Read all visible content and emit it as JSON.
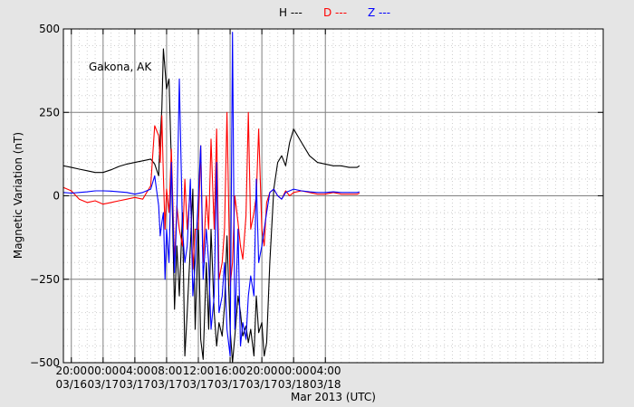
{
  "chart_data": {
    "type": "line",
    "title": "",
    "annotation": "Gakona, AK",
    "xlabel": "Mar 2013 (UTC)",
    "ylabel": "Magnetic Variation (nT)",
    "xlim": [
      -5,
      63
    ],
    "ylim": [
      -500,
      500
    ],
    "x_unit": "hours since 03/17 00:00 UTC",
    "grid": true,
    "legend_position": "top-center",
    "yticks": [
      {
        "value": 500,
        "label": "500"
      },
      {
        "value": 250,
        "label": "250"
      },
      {
        "value": 0,
        "label": "0"
      },
      {
        "value": -250,
        "label": "−250"
      },
      {
        "value": -500,
        "label": "−500"
      }
    ],
    "xticks": [
      {
        "value": -4,
        "time": "20:00",
        "date": "03/16"
      },
      {
        "value": 0,
        "time": "00:00",
        "date": "03/17"
      },
      {
        "value": 4,
        "time": "04:00",
        "date": "03/17"
      },
      {
        "value": 8,
        "time": "08:00",
        "date": "03/17"
      },
      {
        "value": 12,
        "time": "12:00",
        "date": "03/17"
      },
      {
        "value": 16,
        "time": "16:00",
        "date": "03/17"
      },
      {
        "value": 20,
        "time": "20:00",
        "date": "03/17"
      },
      {
        "value": 24,
        "time": "00:00",
        "date": "03/18"
      },
      {
        "value": 28,
        "time": "04:00",
        "date": "03/18"
      }
    ],
    "series": [
      {
        "name": "H ---",
        "color": "#000000",
        "x": [
          -6,
          -5,
          -4,
          -3,
          -2,
          -1,
          0,
          1,
          2,
          3,
          4,
          5,
          6,
          6.5,
          7,
          7.2,
          7.4,
          7.6,
          7.8,
          8,
          8.3,
          8.6,
          9,
          9.3,
          9.6,
          10,
          10.3,
          10.6,
          11,
          11.3,
          11.6,
          12,
          12.3,
          12.6,
          13,
          13.3,
          13.6,
          14,
          14.3,
          14.6,
          15,
          15.3,
          15.6,
          16,
          16.3,
          16.6,
          17,
          17.3,
          17.6,
          18,
          18.3,
          18.6,
          19,
          19.3,
          19.6,
          20,
          20.3,
          20.6,
          21,
          21.5,
          22,
          22.5,
          23,
          23.5,
          24,
          25,
          26,
          27,
          28,
          29,
          30,
          31,
          32,
          32.3
        ],
        "values": [
          95,
          90,
          85,
          80,
          75,
          70,
          70,
          78,
          88,
          95,
          100,
          105,
          110,
          95,
          60,
          180,
          260,
          440,
          380,
          320,
          350,
          100,
          -340,
          -150,
          -300,
          -50,
          -480,
          -350,
          -150,
          20,
          -400,
          -80,
          -430,
          -490,
          -200,
          -400,
          -100,
          -350,
          -450,
          -380,
          -420,
          -330,
          -120,
          -400,
          -500,
          -420,
          -300,
          -350,
          -420,
          -390,
          -440,
          -400,
          -480,
          -300,
          -410,
          -380,
          -480,
          -440,
          -200,
          20,
          100,
          120,
          90,
          160,
          200,
          160,
          120,
          100,
          95,
          90,
          90,
          85,
          85,
          90
        ]
      },
      {
        "name": "D ---",
        "color": "#ff0000",
        "x": [
          -6,
          -5,
          -4,
          -3,
          -2,
          -1,
          0,
          1,
          2,
          3,
          4,
          5,
          6,
          6.5,
          7,
          7.2,
          7.4,
          7.6,
          7.8,
          8,
          8.3,
          8.6,
          9,
          9.3,
          9.6,
          10,
          10.3,
          10.6,
          11,
          11.3,
          11.6,
          12,
          12.3,
          12.6,
          13,
          13.3,
          13.6,
          14,
          14.3,
          14.6,
          15,
          15.3,
          15.6,
          16,
          16.3,
          16.6,
          17,
          17.3,
          17.6,
          18,
          18.3,
          18.6,
          19,
          19.3,
          19.6,
          20,
          20.3,
          20.6,
          21,
          21.5,
          22,
          22.5,
          23,
          23.5,
          24,
          25,
          26,
          27,
          28,
          29,
          30,
          31,
          32,
          32.3
        ],
        "values": [
          20,
          25,
          15,
          -10,
          -20,
          -15,
          -25,
          -20,
          -15,
          -10,
          -5,
          -10,
          30,
          210,
          180,
          100,
          240,
          60,
          -100,
          20,
          -50,
          140,
          -200,
          -30,
          -100,
          -150,
          50,
          -100,
          20,
          -220,
          -100,
          -100,
          150,
          -200,
          0,
          -100,
          170,
          -100,
          200,
          -250,
          -200,
          -100,
          250,
          -270,
          -200,
          0,
          -80,
          -150,
          -190,
          -60,
          250,
          -100,
          -50,
          0,
          200,
          -100,
          -150,
          -20,
          10,
          20,
          0,
          -10,
          15,
          0,
          10,
          15,
          10,
          5,
          5,
          10,
          5,
          5,
          5,
          8
        ]
      },
      {
        "name": "Z ---",
        "color": "#0000ff",
        "x": [
          -6,
          -5,
          -4,
          -3,
          -2,
          -1,
          0,
          1,
          2,
          3,
          4,
          5,
          6,
          6.5,
          7,
          7.2,
          7.4,
          7.6,
          7.8,
          8,
          8.3,
          8.6,
          9,
          9.3,
          9.6,
          10,
          10.3,
          10.6,
          11,
          11.3,
          11.6,
          12,
          12.3,
          12.6,
          13,
          13.3,
          13.6,
          14,
          14.3,
          14.6,
          15,
          15.3,
          15.6,
          16,
          16.3,
          16.6,
          17,
          17.3,
          17.6,
          18,
          18.3,
          18.6,
          19,
          19.3,
          19.6,
          20,
          20.3,
          20.6,
          21,
          21.5,
          22,
          22.5,
          23,
          23.5,
          24,
          25,
          26,
          27,
          28,
          29,
          30,
          31,
          32,
          32.3
        ],
        "values": [
          10,
          10,
          8,
          10,
          12,
          15,
          15,
          14,
          12,
          10,
          5,
          10,
          20,
          60,
          -30,
          -120,
          -80,
          -50,
          -250,
          -100,
          -200,
          100,
          -230,
          -50,
          350,
          -100,
          -200,
          -150,
          50,
          -300,
          -200,
          0,
          150,
          -250,
          -100,
          -200,
          -400,
          -300,
          100,
          -350,
          -300,
          -200,
          -400,
          -480,
          490,
          -400,
          -100,
          -450,
          -380,
          -430,
          -300,
          -240,
          -300,
          50,
          -200,
          -150,
          -100,
          -50,
          10,
          20,
          0,
          -10,
          10,
          15,
          20,
          15,
          12,
          10,
          10,
          12,
          10,
          10,
          10,
          12
        ]
      }
    ]
  }
}
